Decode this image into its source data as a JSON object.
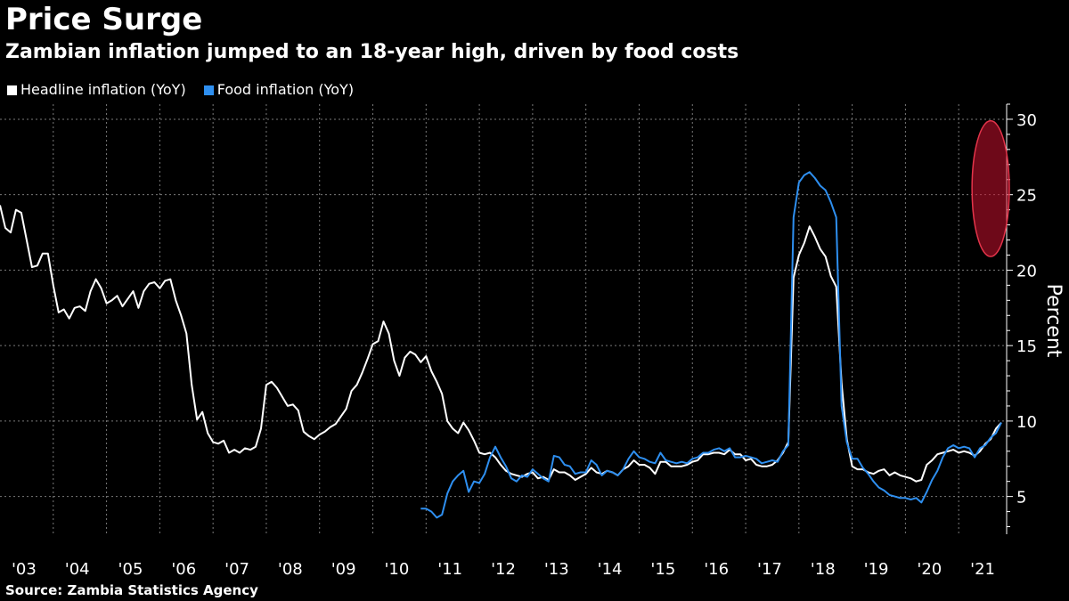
{
  "chart_data": {
    "type": "line",
    "title": "Price Surge",
    "subtitle": "Zambian inflation jumped to an 18-year high, driven by food costs",
    "source": "Source: Zambia Statistics Agency",
    "ylabel": "Percent",
    "xlabel": "",
    "ylim": [
      2.5,
      31
    ],
    "xlim": [
      2003.0,
      2021.9
    ],
    "yticks": [
      5,
      10,
      15,
      20,
      25,
      30
    ],
    "xtick_labels": [
      "'03",
      "'04",
      "'05",
      "'06",
      "'07",
      "'08",
      "'09",
      "'10",
      "'11",
      "'12",
      "'13",
      "'14",
      "'15",
      "'16",
      "'17",
      "'18",
      "'19",
      "'20",
      "'21"
    ],
    "grid": true,
    "legend_position": "top-left",
    "highlight": {
      "x": 2021.6,
      "y": 25.4,
      "rx": 0.35,
      "ry": 4.5,
      "color": "#c8102e"
    },
    "series": [
      {
        "name": "Headline inflation (YoY)",
        "color": "#ffffff",
        "points": [
          [
            2003.0,
            24.3
          ],
          [
            2003.1,
            22.8
          ],
          [
            2003.2,
            22.5
          ],
          [
            2003.3,
            24.0
          ],
          [
            2003.4,
            23.8
          ],
          [
            2003.5,
            22.0
          ],
          [
            2003.6,
            20.2
          ],
          [
            2003.7,
            20.3
          ],
          [
            2003.8,
            21.1
          ],
          [
            2003.9,
            21.1
          ],
          [
            2004.0,
            19.0
          ],
          [
            2004.1,
            17.2
          ],
          [
            2004.2,
            17.4
          ],
          [
            2004.3,
            16.8
          ],
          [
            2004.4,
            17.5
          ],
          [
            2004.5,
            17.6
          ],
          [
            2004.6,
            17.3
          ],
          [
            2004.7,
            18.6
          ],
          [
            2004.8,
            19.4
          ],
          [
            2004.9,
            18.8
          ],
          [
            2005.0,
            17.8
          ],
          [
            2005.1,
            18.0
          ],
          [
            2005.2,
            18.3
          ],
          [
            2005.3,
            17.6
          ],
          [
            2005.4,
            18.1
          ],
          [
            2005.5,
            18.6
          ],
          [
            2005.6,
            17.5
          ],
          [
            2005.7,
            18.6
          ],
          [
            2005.8,
            19.1
          ],
          [
            2005.9,
            19.2
          ],
          [
            2006.0,
            18.8
          ],
          [
            2006.1,
            19.3
          ],
          [
            2006.2,
            19.4
          ],
          [
            2006.3,
            18.0
          ],
          [
            2006.4,
            17.0
          ],
          [
            2006.5,
            15.8
          ],
          [
            2006.6,
            12.4
          ],
          [
            2006.7,
            10.1
          ],
          [
            2006.8,
            10.6
          ],
          [
            2006.9,
            9.2
          ],
          [
            2007.0,
            8.6
          ],
          [
            2007.1,
            8.5
          ],
          [
            2007.2,
            8.7
          ],
          [
            2007.3,
            7.9
          ],
          [
            2007.4,
            8.1
          ],
          [
            2007.5,
            7.9
          ],
          [
            2007.6,
            8.2
          ],
          [
            2007.7,
            8.1
          ],
          [
            2007.8,
            8.3
          ],
          [
            2007.9,
            9.5
          ],
          [
            2008.0,
            12.4
          ],
          [
            2008.1,
            12.6
          ],
          [
            2008.2,
            12.2
          ],
          [
            2008.3,
            11.6
          ],
          [
            2008.4,
            11.0
          ],
          [
            2008.5,
            11.1
          ],
          [
            2008.6,
            10.7
          ],
          [
            2008.7,
            9.3
          ],
          [
            2008.8,
            9.0
          ],
          [
            2008.9,
            8.8
          ],
          [
            2009.0,
            9.1
          ],
          [
            2009.1,
            9.3
          ],
          [
            2009.2,
            9.6
          ],
          [
            2009.3,
            9.8
          ],
          [
            2009.4,
            10.3
          ],
          [
            2009.5,
            10.8
          ],
          [
            2009.6,
            12.0
          ],
          [
            2009.7,
            12.4
          ],
          [
            2009.8,
            13.2
          ],
          [
            2009.9,
            14.1
          ],
          [
            2010.0,
            15.1
          ],
          [
            2010.1,
            15.3
          ],
          [
            2010.2,
            16.6
          ],
          [
            2010.3,
            15.8
          ],
          [
            2010.4,
            14.0
          ],
          [
            2010.5,
            13.0
          ],
          [
            2010.6,
            14.2
          ],
          [
            2010.7,
            14.6
          ],
          [
            2010.8,
            14.4
          ],
          [
            2010.9,
            13.9
          ],
          [
            2011.0,
            14.3
          ],
          [
            2011.1,
            13.3
          ],
          [
            2011.2,
            12.6
          ],
          [
            2011.3,
            11.8
          ],
          [
            2011.4,
            10.0
          ],
          [
            2011.5,
            9.5
          ],
          [
            2011.6,
            9.2
          ],
          [
            2011.7,
            9.9
          ],
          [
            2011.8,
            9.4
          ],
          [
            2011.9,
            8.7
          ],
          [
            2012.0,
            7.9
          ],
          [
            2012.1,
            7.8
          ],
          [
            2012.2,
            7.9
          ],
          [
            2012.3,
            7.6
          ],
          [
            2012.4,
            7.1
          ],
          [
            2012.5,
            6.7
          ],
          [
            2012.6,
            6.5
          ],
          [
            2012.7,
            6.4
          ],
          [
            2012.8,
            6.3
          ],
          [
            2012.9,
            6.5
          ],
          [
            2013.0,
            6.6
          ],
          [
            2013.1,
            6.2
          ],
          [
            2013.2,
            6.3
          ],
          [
            2013.3,
            6.1
          ],
          [
            2013.4,
            6.8
          ],
          [
            2013.5,
            6.6
          ],
          [
            2013.6,
            6.6
          ],
          [
            2013.7,
            6.4
          ],
          [
            2013.8,
            6.1
          ],
          [
            2013.9,
            6.3
          ],
          [
            2014.0,
            6.5
          ],
          [
            2014.1,
            6.9
          ],
          [
            2014.2,
            6.6
          ],
          [
            2014.3,
            6.5
          ],
          [
            2014.4,
            6.7
          ],
          [
            2014.5,
            6.6
          ],
          [
            2014.6,
            6.4
          ],
          [
            2014.7,
            6.8
          ],
          [
            2014.8,
            7.0
          ],
          [
            2014.9,
            7.4
          ],
          [
            2015.0,
            7.1
          ],
          [
            2015.1,
            7.1
          ],
          [
            2015.2,
            6.9
          ],
          [
            2015.3,
            6.5
          ],
          [
            2015.4,
            7.3
          ],
          [
            2015.5,
            7.3
          ],
          [
            2015.6,
            7.0
          ],
          [
            2015.7,
            7.0
          ],
          [
            2015.8,
            7.0
          ],
          [
            2015.9,
            7.1
          ],
          [
            2016.0,
            7.3
          ],
          [
            2016.1,
            7.4
          ],
          [
            2016.2,
            7.8
          ],
          [
            2016.3,
            7.8
          ],
          [
            2016.4,
            7.9
          ],
          [
            2016.5,
            7.9
          ],
          [
            2016.6,
            7.8
          ],
          [
            2016.7,
            8.1
          ],
          [
            2016.8,
            7.8
          ],
          [
            2016.9,
            7.8
          ],
          [
            2017.0,
            7.4
          ],
          [
            2017.1,
            7.5
          ],
          [
            2017.2,
            7.1
          ],
          [
            2017.3,
            7.0
          ],
          [
            2017.4,
            7.0
          ],
          [
            2017.5,
            7.1
          ],
          [
            2017.6,
            7.4
          ],
          [
            2017.7,
            7.9
          ],
          [
            2017.8,
            8.6
          ],
          [
            2017.9,
            19.5
          ],
          [
            2018.0,
            21.0
          ],
          [
            2018.1,
            21.8
          ],
          [
            2018.2,
            22.9
          ],
          [
            2018.3,
            22.2
          ],
          [
            2018.4,
            21.4
          ],
          [
            2018.5,
            20.9
          ],
          [
            2018.6,
            19.6
          ],
          [
            2018.7,
            18.9
          ],
          [
            2018.8,
            12.5
          ],
          [
            2018.9,
            8.8
          ],
          [
            2019.0,
            7.0
          ],
          [
            2019.1,
            6.8
          ],
          [
            2019.2,
            6.8
          ],
          [
            2019.3,
            6.6
          ],
          [
            2019.4,
            6.5
          ],
          [
            2019.5,
            6.7
          ],
          [
            2019.6,
            6.8
          ],
          [
            2019.7,
            6.4
          ],
          [
            2019.8,
            6.6
          ],
          [
            2019.9,
            6.4
          ],
          [
            2020.0,
            6.3
          ],
          [
            2020.1,
            6.2
          ],
          [
            2020.2,
            6.0
          ],
          [
            2020.3,
            6.1
          ],
          [
            2020.4,
            7.1
          ],
          [
            2020.5,
            7.4
          ],
          [
            2020.6,
            7.8
          ],
          [
            2020.7,
            7.9
          ],
          [
            2020.8,
            8.0
          ],
          [
            2020.9,
            8.1
          ],
          [
            2021.0,
            7.9
          ],
          [
            2021.1,
            8.0
          ],
          [
            2021.2,
            7.9
          ],
          [
            2021.3,
            7.7
          ],
          [
            2021.4,
            8.0
          ],
          [
            2021.5,
            8.5
          ],
          [
            2021.6,
            8.8
          ],
          [
            2021.7,
            9.5
          ],
          [
            2021.8,
            9.9
          ]
        ]
      },
      {
        "name": "Food inflation (YoY)",
        "color": "#2e8ff0",
        "points": [
          [
            2010.9,
            4.2
          ],
          [
            2011.0,
            4.2
          ],
          [
            2011.1,
            4.0
          ],
          [
            2011.2,
            3.6
          ],
          [
            2011.3,
            3.8
          ],
          [
            2011.4,
            5.2
          ],
          [
            2011.5,
            6.0
          ],
          [
            2011.6,
            6.4
          ],
          [
            2011.7,
            6.7
          ],
          [
            2011.8,
            5.3
          ],
          [
            2011.9,
            6.0
          ],
          [
            2012.0,
            5.9
          ],
          [
            2012.1,
            6.5
          ],
          [
            2012.2,
            7.6
          ],
          [
            2012.3,
            8.3
          ],
          [
            2012.4,
            7.6
          ],
          [
            2012.5,
            7.0
          ],
          [
            2012.6,
            6.2
          ],
          [
            2012.7,
            6.0
          ],
          [
            2012.8,
            6.4
          ],
          [
            2012.9,
            6.3
          ],
          [
            2013.0,
            6.8
          ],
          [
            2013.1,
            6.5
          ],
          [
            2013.2,
            6.2
          ],
          [
            2013.3,
            6.0
          ],
          [
            2013.4,
            7.7
          ],
          [
            2013.5,
            7.6
          ],
          [
            2013.6,
            7.1
          ],
          [
            2013.7,
            7.0
          ],
          [
            2013.8,
            6.5
          ],
          [
            2013.9,
            6.6
          ],
          [
            2014.0,
            6.6
          ],
          [
            2014.1,
            7.4
          ],
          [
            2014.2,
            7.1
          ],
          [
            2014.3,
            6.4
          ],
          [
            2014.4,
            6.7
          ],
          [
            2014.5,
            6.6
          ],
          [
            2014.6,
            6.4
          ],
          [
            2014.7,
            6.8
          ],
          [
            2014.8,
            7.5
          ],
          [
            2014.9,
            8.0
          ],
          [
            2015.0,
            7.6
          ],
          [
            2015.1,
            7.5
          ],
          [
            2015.2,
            7.3
          ],
          [
            2015.3,
            7.2
          ],
          [
            2015.4,
            7.9
          ],
          [
            2015.5,
            7.4
          ],
          [
            2015.6,
            7.3
          ],
          [
            2015.7,
            7.2
          ],
          [
            2015.8,
            7.3
          ],
          [
            2015.9,
            7.2
          ],
          [
            2016.0,
            7.5
          ],
          [
            2016.1,
            7.6
          ],
          [
            2016.2,
            7.9
          ],
          [
            2016.3,
            7.9
          ],
          [
            2016.4,
            8.1
          ],
          [
            2016.5,
            8.2
          ],
          [
            2016.6,
            8.0
          ],
          [
            2016.7,
            8.2
          ],
          [
            2016.8,
            7.6
          ],
          [
            2016.9,
            7.6
          ],
          [
            2017.0,
            7.7
          ],
          [
            2017.1,
            7.6
          ],
          [
            2017.2,
            7.5
          ],
          [
            2017.3,
            7.2
          ],
          [
            2017.4,
            7.3
          ],
          [
            2017.5,
            7.4
          ],
          [
            2017.6,
            7.3
          ],
          [
            2017.7,
            8.0
          ],
          [
            2017.8,
            8.4
          ],
          [
            2017.9,
            23.5
          ],
          [
            2018.0,
            25.8
          ],
          [
            2018.1,
            26.3
          ],
          [
            2018.2,
            26.5
          ],
          [
            2018.3,
            26.1
          ],
          [
            2018.4,
            25.6
          ],
          [
            2018.5,
            25.3
          ],
          [
            2018.6,
            24.5
          ],
          [
            2018.7,
            23.5
          ],
          [
            2018.8,
            11.0
          ],
          [
            2018.9,
            8.6
          ],
          [
            2019.0,
            7.5
          ],
          [
            2019.1,
            7.5
          ],
          [
            2019.2,
            6.9
          ],
          [
            2019.3,
            6.5
          ],
          [
            2019.4,
            6.0
          ],
          [
            2019.5,
            5.6
          ],
          [
            2019.6,
            5.4
          ],
          [
            2019.7,
            5.1
          ],
          [
            2019.8,
            5.0
          ],
          [
            2019.9,
            4.9
          ],
          [
            2020.0,
            4.9
          ],
          [
            2020.1,
            4.8
          ],
          [
            2020.2,
            4.9
          ],
          [
            2020.3,
            4.6
          ],
          [
            2020.4,
            5.3
          ],
          [
            2020.5,
            6.1
          ],
          [
            2020.6,
            6.7
          ],
          [
            2020.7,
            7.6
          ],
          [
            2020.8,
            8.2
          ],
          [
            2020.9,
            8.4
          ],
          [
            2021.0,
            8.2
          ],
          [
            2021.1,
            8.3
          ],
          [
            2021.2,
            8.2
          ],
          [
            2021.3,
            7.6
          ],
          [
            2021.4,
            8.2
          ],
          [
            2021.5,
            8.4
          ],
          [
            2021.6,
            8.9
          ],
          [
            2021.7,
            9.2
          ],
          [
            2021.8,
            9.9
          ]
        ]
      }
    ]
  }
}
